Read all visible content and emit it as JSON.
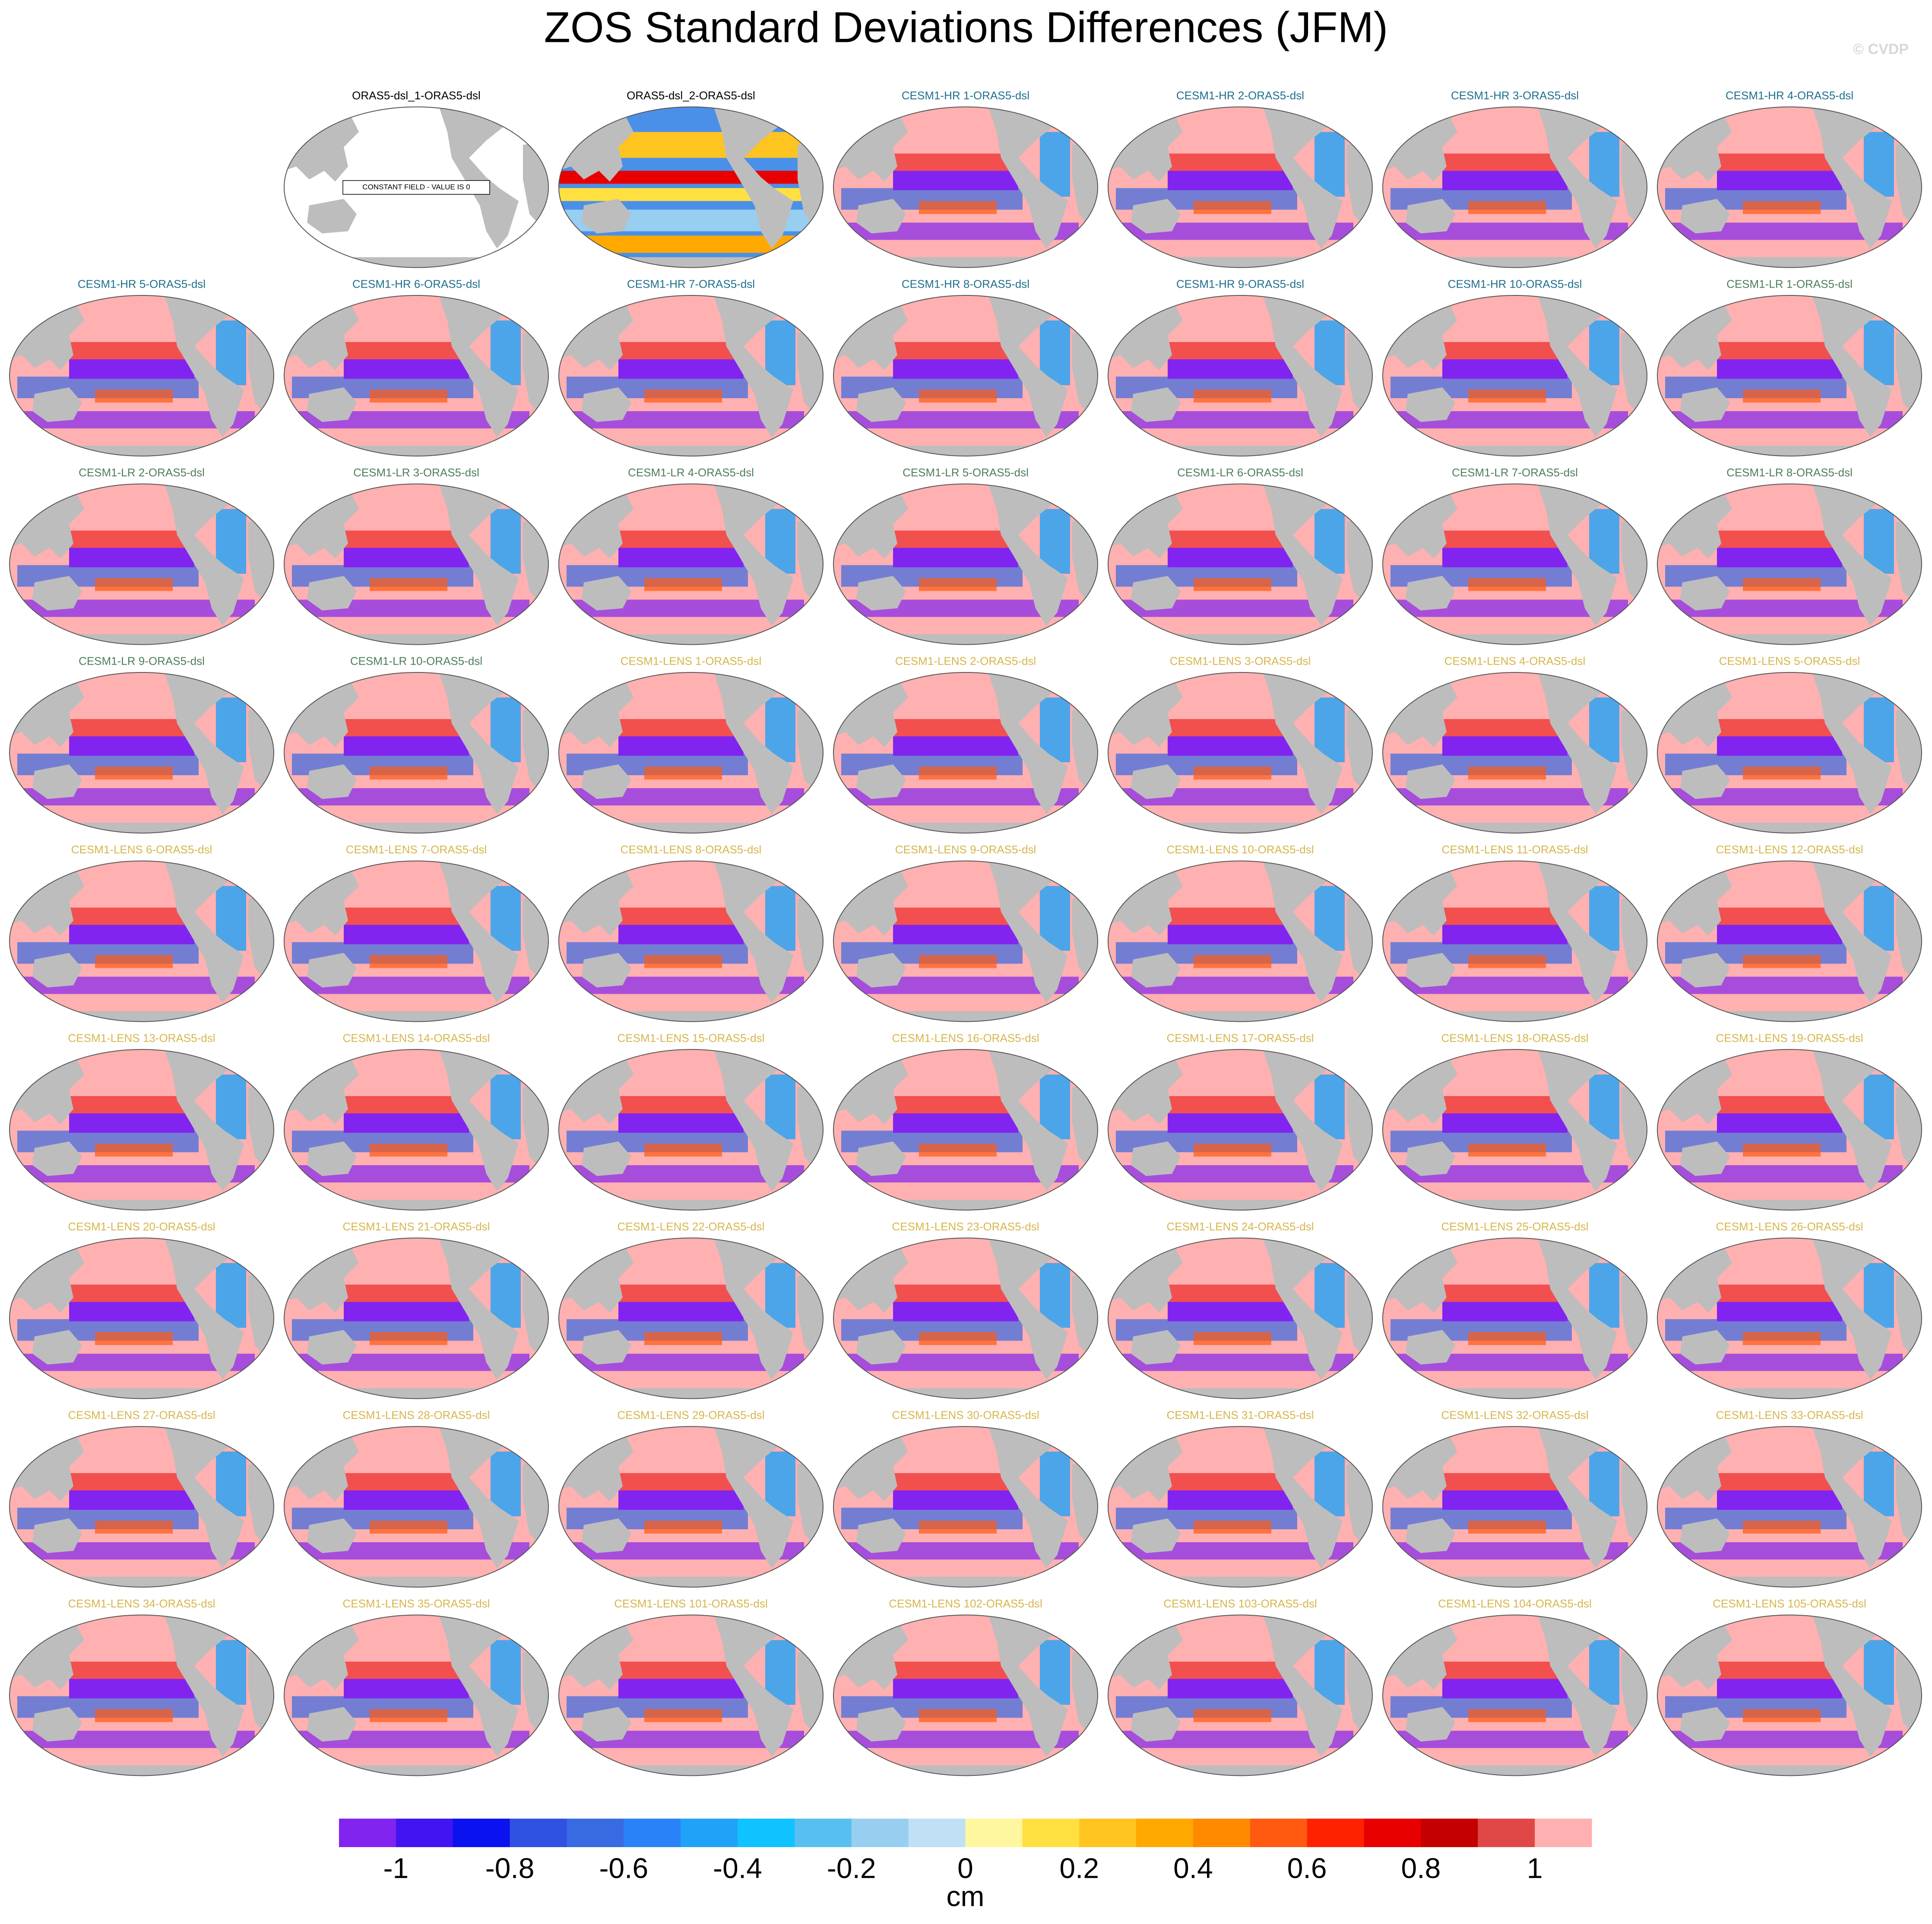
{
  "chart_data": {
    "type": "map_grid",
    "title": "ZOS Standard Deviations Differences (JFM)",
    "watermark": "© CVDP",
    "columns": 7,
    "panels": [
      {
        "title": "ORAS5-dsl_1-ORAS5-dsl",
        "color": "#000000",
        "annotation": "CONSTANT FIELD - VALUE IS 0"
      },
      {
        "title": "ORAS5-dsl_2-ORAS5-dsl",
        "color": "#000000"
      },
      {
        "title": "CESM1-HR 1-ORAS5-dsl",
        "color": "#1f6f8b"
      },
      {
        "title": "CESM1-HR 2-ORAS5-dsl",
        "color": "#1f6f8b"
      },
      {
        "title": "CESM1-HR 3-ORAS5-dsl",
        "color": "#1f6f8b"
      },
      {
        "title": "CESM1-HR 4-ORAS5-dsl",
        "color": "#1f6f8b"
      },
      {
        "title": "CESM1-HR 5-ORAS5-dsl",
        "color": "#1f6f8b"
      },
      {
        "title": "CESM1-HR 6-ORAS5-dsl",
        "color": "#1f6f8b"
      },
      {
        "title": "CESM1-HR 7-ORAS5-dsl",
        "color": "#1f6f8b"
      },
      {
        "title": "CESM1-HR 8-ORAS5-dsl",
        "color": "#1f6f8b"
      },
      {
        "title": "CESM1-HR 9-ORAS5-dsl",
        "color": "#1f6f8b"
      },
      {
        "title": "CESM1-HR 10-ORAS5-dsl",
        "color": "#1f6f8b"
      },
      {
        "title": "CESM1-LR 1-ORAS5-dsl",
        "color": "#4e7d5c"
      },
      {
        "title": "CESM1-LR 2-ORAS5-dsl",
        "color": "#4e7d5c"
      },
      {
        "title": "CESM1-LR 3-ORAS5-dsl",
        "color": "#4e7d5c"
      },
      {
        "title": "CESM1-LR 4-ORAS5-dsl",
        "color": "#4e7d5c"
      },
      {
        "title": "CESM1-LR 5-ORAS5-dsl",
        "color": "#4e7d5c"
      },
      {
        "title": "CESM1-LR 6-ORAS5-dsl",
        "color": "#4e7d5c"
      },
      {
        "title": "CESM1-LR 7-ORAS5-dsl",
        "color": "#4e7d5c"
      },
      {
        "title": "CESM1-LR 8-ORAS5-dsl",
        "color": "#4e7d5c"
      },
      {
        "title": "CESM1-LR 9-ORAS5-dsl",
        "color": "#4e7d5c"
      },
      {
        "title": "CESM1-LR 10-ORAS5-dsl",
        "color": "#4e7d5c"
      },
      {
        "title": "CESM1-LENS 1-ORAS5-dsl",
        "color": "#d6b64c"
      },
      {
        "title": "CESM1-LENS 2-ORAS5-dsl",
        "color": "#d6b64c"
      },
      {
        "title": "CESM1-LENS 3-ORAS5-dsl",
        "color": "#d6b64c"
      },
      {
        "title": "CESM1-LENS 4-ORAS5-dsl",
        "color": "#d6b64c"
      },
      {
        "title": "CESM1-LENS 5-ORAS5-dsl",
        "color": "#d6b64c"
      },
      {
        "title": "CESM1-LENS 6-ORAS5-dsl",
        "color": "#d6b64c"
      },
      {
        "title": "CESM1-LENS 7-ORAS5-dsl",
        "color": "#d6b64c"
      },
      {
        "title": "CESM1-LENS 8-ORAS5-dsl",
        "color": "#d6b64c"
      },
      {
        "title": "CESM1-LENS 9-ORAS5-dsl",
        "color": "#d6b64c"
      },
      {
        "title": "CESM1-LENS 10-ORAS5-dsl",
        "color": "#d6b64c"
      },
      {
        "title": "CESM1-LENS 11-ORAS5-dsl",
        "color": "#d6b64c"
      },
      {
        "title": "CESM1-LENS 12-ORAS5-dsl",
        "color": "#d6b64c"
      },
      {
        "title": "CESM1-LENS 13-ORAS5-dsl",
        "color": "#d6b64c"
      },
      {
        "title": "CESM1-LENS 14-ORAS5-dsl",
        "color": "#d6b64c"
      },
      {
        "title": "CESM1-LENS 15-ORAS5-dsl",
        "color": "#d6b64c"
      },
      {
        "title": "CESM1-LENS 16-ORAS5-dsl",
        "color": "#d6b64c"
      },
      {
        "title": "CESM1-LENS 17-ORAS5-dsl",
        "color": "#d6b64c"
      },
      {
        "title": "CESM1-LENS 18-ORAS5-dsl",
        "color": "#d6b64c"
      },
      {
        "title": "CESM1-LENS 19-ORAS5-dsl",
        "color": "#d6b64c"
      },
      {
        "title": "CESM1-LENS 20-ORAS5-dsl",
        "color": "#d6b64c"
      },
      {
        "title": "CESM1-LENS 21-ORAS5-dsl",
        "color": "#d6b64c"
      },
      {
        "title": "CESM1-LENS 22-ORAS5-dsl",
        "color": "#d6b64c"
      },
      {
        "title": "CESM1-LENS 23-ORAS5-dsl",
        "color": "#d6b64c"
      },
      {
        "title": "CESM1-LENS 24-ORAS5-dsl",
        "color": "#d6b64c"
      },
      {
        "title": "CESM1-LENS 25-ORAS5-dsl",
        "color": "#d6b64c"
      },
      {
        "title": "CESM1-LENS 26-ORAS5-dsl",
        "color": "#d6b64c"
      },
      {
        "title": "CESM1-LENS 27-ORAS5-dsl",
        "color": "#d6b64c"
      },
      {
        "title": "CESM1-LENS 28-ORAS5-dsl",
        "color": "#d6b64c"
      },
      {
        "title": "CESM1-LENS 29-ORAS5-dsl",
        "color": "#d6b64c"
      },
      {
        "title": "CESM1-LENS 30-ORAS5-dsl",
        "color": "#d6b64c"
      },
      {
        "title": "CESM1-LENS 31-ORAS5-dsl",
        "color": "#d6b64c"
      },
      {
        "title": "CESM1-LENS 32-ORAS5-dsl",
        "color": "#d6b64c"
      },
      {
        "title": "CESM1-LENS 33-ORAS5-dsl",
        "color": "#d6b64c"
      },
      {
        "title": "CESM1-LENS 34-ORAS5-dsl",
        "color": "#d6b64c"
      },
      {
        "title": "CESM1-LENS 35-ORAS5-dsl",
        "color": "#d6b64c"
      },
      {
        "title": "CESM1-LENS 101-ORAS5-dsl",
        "color": "#d6b64c"
      },
      {
        "title": "CESM1-LENS 102-ORAS5-dsl",
        "color": "#d6b64c"
      },
      {
        "title": "CESM1-LENS 103-ORAS5-dsl",
        "color": "#d6b64c"
      },
      {
        "title": "CESM1-LENS 104-ORAS5-dsl",
        "color": "#d6b64c"
      },
      {
        "title": "CESM1-LENS 105-ORAS5-dsl",
        "color": "#d6b64c"
      }
    ],
    "colorbar": {
      "colors": [
        "#8224f0",
        "#4214f2",
        "#0b12f0",
        "#2f52e0",
        "#386ae2",
        "#2a82f8",
        "#1fa2f8",
        "#10c2ff",
        "#58c0f0",
        "#98cff0",
        "#c0e0f6",
        "#fff6a0",
        "#ffe040",
        "#ffc420",
        "#ffa800",
        "#ff8a00",
        "#ff5a10",
        "#ff2200",
        "#e80000",
        "#c40000",
        "#e04848",
        "#ffb0b0"
      ],
      "ticks": [
        -1,
        -0.8,
        -0.6,
        -0.4,
        -0.2,
        0,
        0.2,
        0.4,
        0.6,
        0.8,
        1
      ],
      "label": "cm"
    }
  }
}
